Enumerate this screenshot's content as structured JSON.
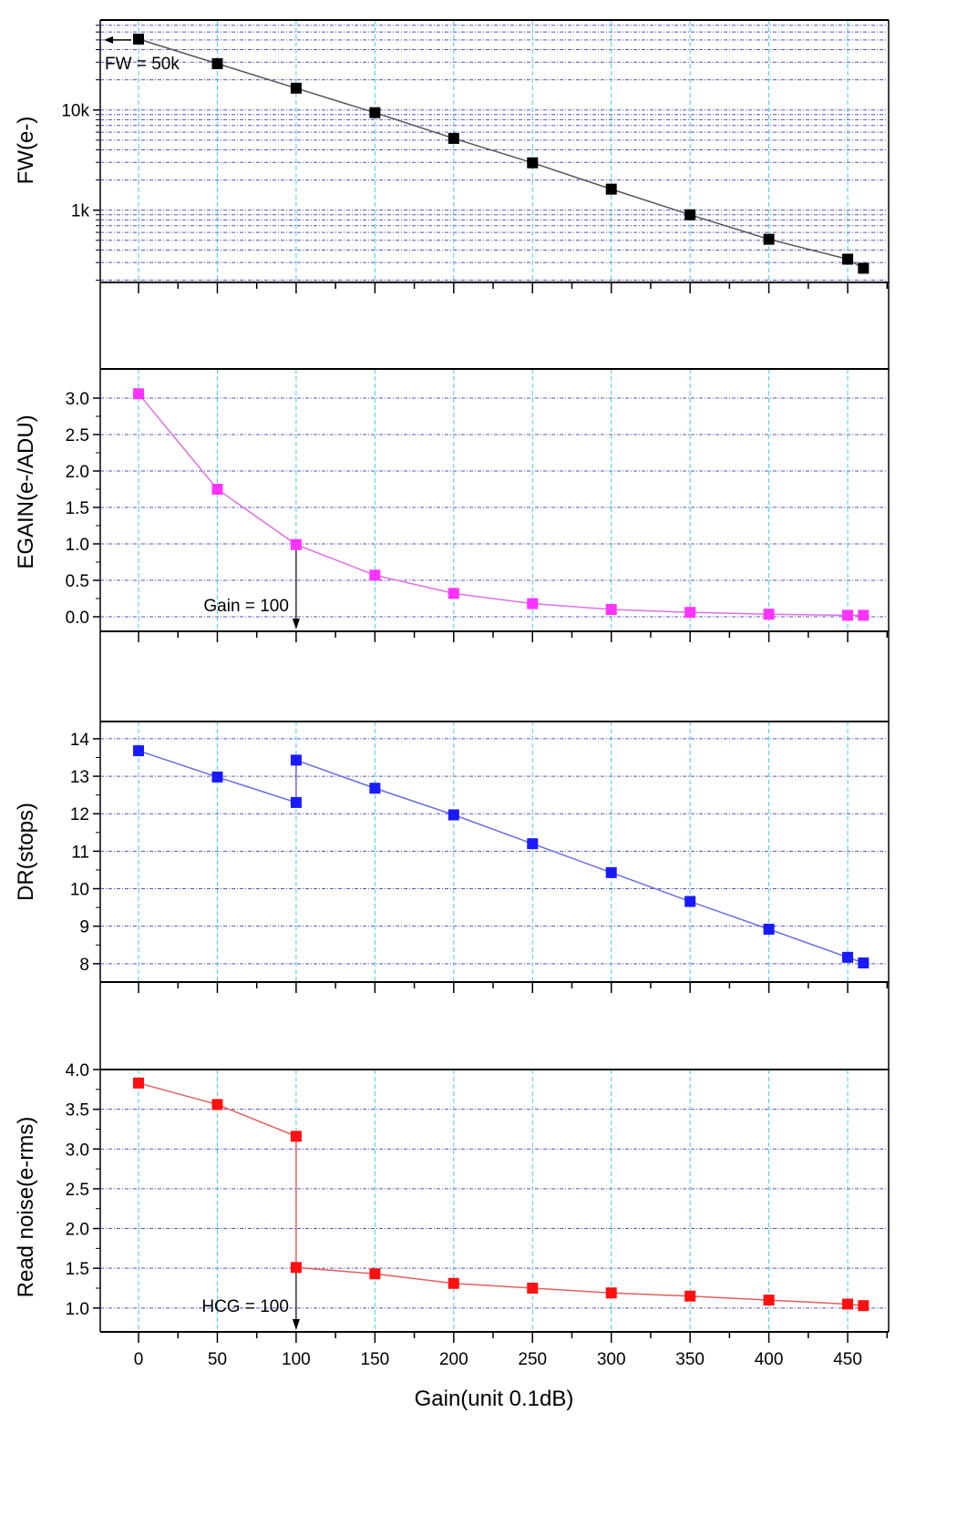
{
  "chart_data": [
    {
      "type": "line",
      "ylabel": "FW(e-)",
      "yscale": "log",
      "ylim": [
        190,
        79000
      ],
      "ytick_values": [
        1000,
        10000
      ],
      "ytick_labels": [
        "1k",
        "10k"
      ],
      "color": "#000000",
      "line_color": "#555555",
      "x": [
        0,
        50,
        100,
        150,
        200,
        250,
        300,
        350,
        400,
        450,
        460
      ],
      "values": [
        51000,
        29000,
        16500,
        9400,
        5200,
        2970,
        1620,
        900,
        512,
        324,
        263
      ],
      "annotation": {
        "text": "FW = 50k",
        "arrow": "left",
        "x": 0,
        "y": 50000
      }
    },
    {
      "type": "line",
      "ylabel": "EGAIN(e-/ADU)",
      "yscale": "linear",
      "ylim": [
        -0.2,
        3.4
      ],
      "ytick_values": [
        0,
        0.5,
        1,
        1.5,
        2,
        2.5,
        3
      ],
      "ytick_labels": [
        "0.0",
        "0.5",
        "1.0",
        "1.5",
        "2.0",
        "2.5",
        "3.0"
      ],
      "color": "#ff33ff",
      "line_color": "#e070e0",
      "x": [
        0,
        50,
        100,
        150,
        200,
        250,
        300,
        350,
        400,
        450,
        460
      ],
      "values": [
        3.06,
        1.75,
        0.99,
        0.57,
        0.32,
        0.18,
        0.1,
        0.06,
        0.035,
        0.02,
        0.02
      ],
      "annotation": {
        "text": "Gain = 100",
        "arrow": "down",
        "x": 100,
        "y": 0.99
      }
    },
    {
      "type": "line",
      "ylabel": "DR(stops)",
      "yscale": "linear",
      "ylim": [
        7.51,
        14.46
      ],
      "ytick_values": [
        8,
        9,
        10,
        11,
        12,
        13,
        14
      ],
      "ytick_labels": [
        "8",
        "9",
        "10",
        "11",
        "12",
        "13",
        "14"
      ],
      "color": "#1a1aff",
      "line_color": "#6a6ae0",
      "x": [
        0,
        50,
        100,
        100,
        150,
        200,
        250,
        300,
        350,
        400,
        450,
        460
      ],
      "values": [
        13.68,
        12.98,
        12.3,
        13.43,
        12.68,
        11.97,
        11.2,
        10.43,
        9.66,
        8.92,
        8.17,
        8.02
      ]
    },
    {
      "type": "line",
      "ylabel": "Read noise(e-rms)",
      "yscale": "linear",
      "ylim": [
        0.7,
        4.0
      ],
      "ytick_values": [
        1,
        1.5,
        2,
        2.5,
        3,
        3.5,
        4
      ],
      "ytick_labels": [
        "1.0",
        "1.5",
        "2.0",
        "2.5",
        "3.0",
        "3.5",
        "4.0"
      ],
      "color": "#ff1010",
      "line_color": "#e06060",
      "x": [
        0,
        50,
        100,
        100,
        150,
        200,
        250,
        300,
        350,
        400,
        450,
        460
      ],
      "values": [
        3.83,
        3.56,
        3.16,
        1.51,
        1.43,
        1.31,
        1.25,
        1.19,
        1.15,
        1.1,
        1.05,
        1.03
      ],
      "annotation": {
        "text": "HCG = 100",
        "arrow": "down",
        "x": 100,
        "y": 1.51
      }
    }
  ],
  "xaxis": {
    "xlabel": "Gain(unit 0.1dB)",
    "xlim": [
      -24.3,
      476
    ],
    "xtick_values": [
      0,
      50,
      100,
      150,
      200,
      250,
      300,
      350,
      400,
      450
    ],
    "xtick_labels": [
      "0",
      "50",
      "100",
      "150",
      "200",
      "250",
      "300",
      "350",
      "400",
      "450"
    ]
  },
  "grid": true,
  "colors": {
    "hgrid": "#5050c8",
    "vgrid": "#40d0e0"
  }
}
